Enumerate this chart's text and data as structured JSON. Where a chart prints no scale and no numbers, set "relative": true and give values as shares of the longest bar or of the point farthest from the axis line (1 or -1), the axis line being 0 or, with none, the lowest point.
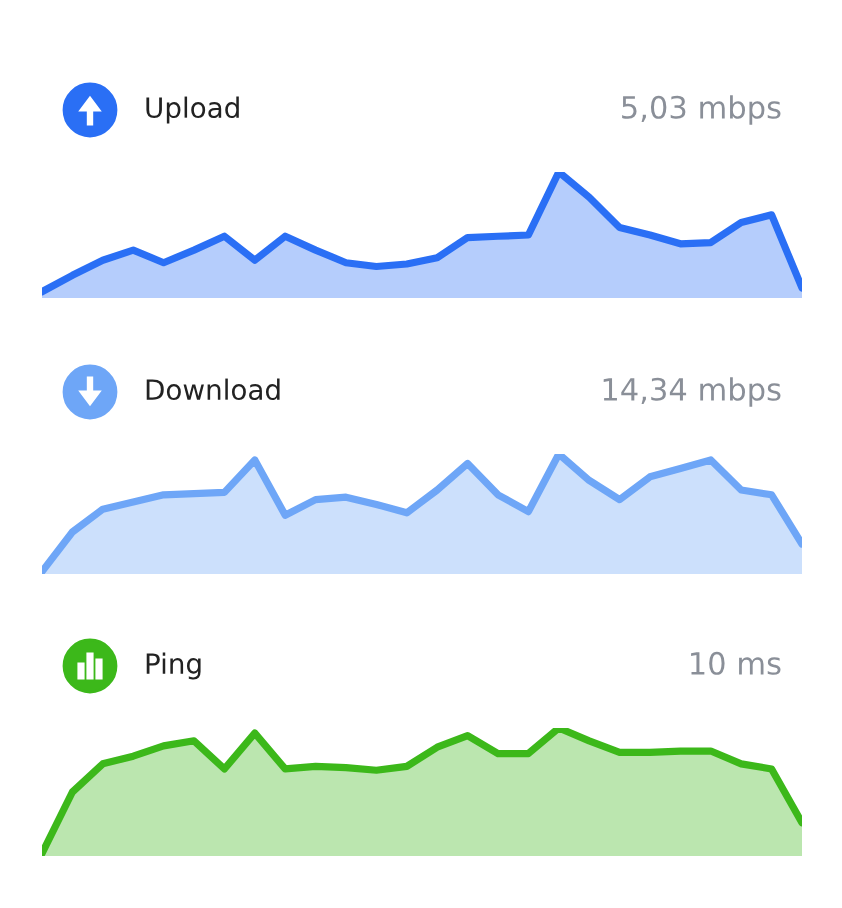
{
  "chart_data": [
    {
      "type": "area",
      "title": "Upload",
      "annotations": [
        "5,03 mbps"
      ],
      "relative": true,
      "tick_labels": false,
      "categories": [
        null,
        null,
        null,
        null,
        null,
        null,
        null,
        null,
        null,
        null,
        null,
        null,
        null,
        null,
        null,
        null,
        null,
        null,
        null,
        null,
        null,
        null,
        null,
        null,
        null,
        null
      ],
      "series": [
        {
          "color": "#2a6ff5",
          "values": [
            0.05,
            0.18,
            0.3,
            0.38,
            0.28,
            0.38,
            0.49,
            0.3,
            0.49,
            0.38,
            0.28,
            0.25,
            0.27,
            0.32,
            0.48,
            0.49,
            0.5,
            1.0,
            0.8,
            0.56,
            0.5,
            0.43,
            0.44,
            0.6,
            0.66,
            0.08
          ]
        }
      ]
    },
    {
      "type": "area",
      "title": "Download",
      "annotations": [
        "14,34 mbps"
      ],
      "relative": true,
      "tick_labels": false,
      "categories": [
        null,
        null,
        null,
        null,
        null,
        null,
        null,
        null,
        null,
        null,
        null,
        null,
        null,
        null,
        null,
        null,
        null,
        null,
        null,
        null,
        null,
        null,
        null,
        null,
        null,
        null
      ],
      "series": [
        {
          "color": "#6ea6f7",
          "values": [
            0.02,
            0.35,
            0.54,
            0.6,
            0.66,
            0.67,
            0.68,
            0.95,
            0.49,
            0.62,
            0.64,
            0.58,
            0.51,
            0.7,
            0.92,
            0.66,
            0.52,
            1.0,
            0.78,
            0.62,
            0.81,
            0.88,
            0.95,
            0.7,
            0.66,
            0.25
          ]
        }
      ]
    },
    {
      "type": "area",
      "title": "Ping",
      "annotations": [
        "10 ms"
      ],
      "relative": true,
      "tick_labels": false,
      "categories": [
        null,
        null,
        null,
        null,
        null,
        null,
        null,
        null,
        null,
        null,
        null,
        null,
        null,
        null,
        null,
        null,
        null,
        null,
        null,
        null,
        null,
        null,
        null,
        null,
        null,
        null
      ],
      "series": [
        {
          "color": "#3cb81a",
          "values": [
            0.02,
            0.5,
            0.72,
            0.78,
            0.86,
            0.9,
            0.68,
            0.96,
            0.68,
            0.7,
            0.69,
            0.67,
            0.7,
            0.85,
            0.94,
            0.8,
            0.8,
            1.0,
            0.9,
            0.81,
            0.81,
            0.82,
            0.82,
            0.72,
            0.68,
            0.26
          ]
        }
      ]
    }
  ]
}
